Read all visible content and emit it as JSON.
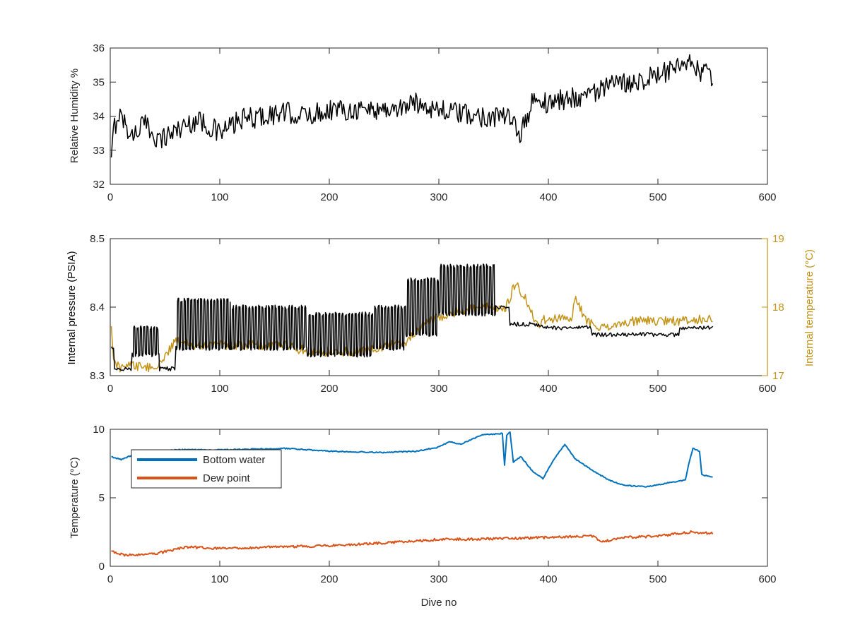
{
  "chart_data": [
    {
      "type": "line",
      "title": "",
      "xlabel": "",
      "ylabel": "Relative Humidity %",
      "xlim": [
        0,
        600
      ],
      "ylim": [
        32,
        36
      ],
      "xticks": [
        "0",
        "100",
        "200",
        "300",
        "400",
        "500",
        "600"
      ],
      "yticks": [
        "32",
        "33",
        "34",
        "35",
        "36"
      ],
      "series": [
        {
          "color": "#000000",
          "x_range": [
            1,
            550
          ],
          "trend": [
            [
              0,
              32.1
            ],
            [
              3,
              33.6
            ],
            [
              8,
              34.1
            ],
            [
              20,
              33.4
            ],
            [
              30,
              33.8
            ],
            [
              45,
              33.3
            ],
            [
              60,
              33.6
            ],
            [
              80,
              33.9
            ],
            [
              100,
              33.5
            ],
            [
              120,
              33.9
            ],
            [
              140,
              34.0
            ],
            [
              160,
              34.1
            ],
            [
              180,
              34.0
            ],
            [
              200,
              34.2
            ],
            [
              230,
              34.2
            ],
            [
              260,
              34.2
            ],
            [
              280,
              34.4
            ],
            [
              300,
              34.2
            ],
            [
              330,
              34.0
            ],
            [
              360,
              34.0
            ],
            [
              375,
              33.5
            ],
            [
              385,
              34.4
            ],
            [
              400,
              34.4
            ],
            [
              430,
              34.6
            ],
            [
              460,
              34.9
            ],
            [
              500,
              35.2
            ],
            [
              530,
              35.5
            ],
            [
              540,
              35.3
            ],
            [
              550,
              35.1
            ]
          ],
          "noise": 0.32
        }
      ]
    },
    {
      "type": "line",
      "title": "",
      "xlabel": "",
      "ylabel": "Internal pressure (PSIA)",
      "ylabel_right": "Internal temperature (°C)",
      "xlim": [
        0,
        600
      ],
      "ylim": [
        8.3,
        8.5
      ],
      "ylim_right": [
        17,
        19
      ],
      "xticks": [
        "0",
        "100",
        "200",
        "300",
        "400",
        "500",
        "600"
      ],
      "yticks": [
        "8.3",
        "8.4",
        "8.5"
      ],
      "yticks_right": [
        "17",
        "18",
        "19"
      ],
      "right_axis_color": "#C39318",
      "series": [
        {
          "axis": "left",
          "color": "#000000",
          "x_range": [
            1,
            550
          ],
          "segments": [
            {
              "x0": 0,
              "x1": 4,
              "style": "flat",
              "value": 8.34
            },
            {
              "x0": 4,
              "x1": 20,
              "style": "flat",
              "value": 8.31
            },
            {
              "x0": 20,
              "x1": 45,
              "style": "osc",
              "low": 8.33,
              "high": 8.37,
              "period": 3
            },
            {
              "x0": 45,
              "x1": 60,
              "style": "flat",
              "value": 8.31
            },
            {
              "x0": 60,
              "x1": 110,
              "style": "osc",
              "low": 8.34,
              "high": 8.41,
              "period": 3
            },
            {
              "x0": 110,
              "x1": 180,
              "style": "osc",
              "low": 8.34,
              "high": 8.4,
              "period": 3
            },
            {
              "x0": 180,
              "x1": 240,
              "style": "osc",
              "low": 8.33,
              "high": 8.39,
              "period": 3
            },
            {
              "x0": 240,
              "x1": 270,
              "style": "osc",
              "low": 8.34,
              "high": 8.4,
              "period": 3
            },
            {
              "x0": 270,
              "x1": 300,
              "style": "osc",
              "low": 8.36,
              "high": 8.44,
              "period": 3
            },
            {
              "x0": 300,
              "x1": 352,
              "style": "osc",
              "low": 8.39,
              "high": 8.46,
              "period": 3
            },
            {
              "x0": 352,
              "x1": 365,
              "style": "flat",
              "value": 8.4
            },
            {
              "x0": 365,
              "x1": 395,
              "style": "flat",
              "value": 8.375
            },
            {
              "x0": 395,
              "x1": 440,
              "style": "flat",
              "value": 8.37
            },
            {
              "x0": 440,
              "x1": 520,
              "style": "flat",
              "value": 8.36
            },
            {
              "x0": 520,
              "x1": 550,
              "style": "flat",
              "value": 8.37
            }
          ],
          "noise": 0.003
        },
        {
          "axis": "right",
          "color": "#C39318",
          "x_range": [
            1,
            550
          ],
          "trend": [
            [
              0,
              17.9
            ],
            [
              3,
              17.2
            ],
            [
              10,
              17.1
            ],
            [
              20,
              17.15
            ],
            [
              40,
              17.1
            ],
            [
              50,
              17.3
            ],
            [
              60,
              17.5
            ],
            [
              80,
              17.45
            ],
            [
              120,
              17.45
            ],
            [
              160,
              17.45
            ],
            [
              180,
              17.35
            ],
            [
              230,
              17.35
            ],
            [
              270,
              17.5
            ],
            [
              290,
              17.8
            ],
            [
              320,
              17.95
            ],
            [
              350,
              18.0
            ],
            [
              360,
              17.95
            ],
            [
              370,
              18.35
            ],
            [
              380,
              18.1
            ],
            [
              390,
              17.75
            ],
            [
              400,
              17.85
            ],
            [
              420,
              17.8
            ],
            [
              425,
              18.1
            ],
            [
              435,
              17.8
            ],
            [
              450,
              17.7
            ],
            [
              480,
              17.8
            ],
            [
              530,
              17.8
            ],
            [
              550,
              17.85
            ]
          ],
          "noise": 0.07
        }
      ]
    },
    {
      "type": "line",
      "title": "",
      "xlabel": "Dive no",
      "ylabel": "Temperature (°C)",
      "xlim": [
        0,
        600
      ],
      "ylim": [
        0,
        10
      ],
      "xticks": [
        "0",
        "100",
        "200",
        "300",
        "400",
        "500",
        "600"
      ],
      "yticks": [
        "0",
        "5",
        "10"
      ],
      "legend": {
        "location": "top-left",
        "entries": [
          "Bottom water",
          "Dew point"
        ]
      },
      "series": [
        {
          "name": "Bottom water",
          "color": "#0072BD",
          "x_range": [
            1,
            550
          ],
          "trend": [
            [
              0,
              8.0
            ],
            [
              10,
              7.8
            ],
            [
              20,
              8.1
            ],
            [
              60,
              8.5
            ],
            [
              100,
              8.5
            ],
            [
              160,
              8.6
            ],
            [
              200,
              8.4
            ],
            [
              250,
              8.3
            ],
            [
              280,
              8.4
            ],
            [
              300,
              8.7
            ],
            [
              310,
              9.1
            ],
            [
              320,
              8.9
            ],
            [
              340,
              9.6
            ],
            [
              358,
              9.7
            ],
            [
              360,
              7.4
            ],
            [
              362,
              9.6
            ],
            [
              365,
              9.8
            ],
            [
              368,
              7.6
            ],
            [
              375,
              8.0
            ],
            [
              385,
              7.0
            ],
            [
              395,
              6.4
            ],
            [
              405,
              7.8
            ],
            [
              415,
              8.9
            ],
            [
              425,
              7.8
            ],
            [
              440,
              7.0
            ],
            [
              455,
              6.3
            ],
            [
              470,
              5.9
            ],
            [
              490,
              5.8
            ],
            [
              510,
              6.1
            ],
            [
              525,
              6.3
            ],
            [
              528,
              7.4
            ],
            [
              532,
              8.6
            ],
            [
              538,
              8.4
            ],
            [
              540,
              6.7
            ],
            [
              550,
              6.5
            ]
          ],
          "noise": 0.04
        },
        {
          "name": "Dew point",
          "color": "#D95319",
          "x_range": [
            1,
            550
          ],
          "trend": [
            [
              0,
              1.1
            ],
            [
              15,
              0.8
            ],
            [
              40,
              0.9
            ],
            [
              70,
              1.4
            ],
            [
              100,
              1.3
            ],
            [
              150,
              1.4
            ],
            [
              200,
              1.5
            ],
            [
              250,
              1.7
            ],
            [
              300,
              1.95
            ],
            [
              350,
              2.0
            ],
            [
              400,
              2.1
            ],
            [
              440,
              2.2
            ],
            [
              450,
              1.8
            ],
            [
              470,
              2.1
            ],
            [
              500,
              2.2
            ],
            [
              530,
              2.5
            ],
            [
              550,
              2.4
            ]
          ],
          "noise": 0.09
        }
      ]
    }
  ]
}
